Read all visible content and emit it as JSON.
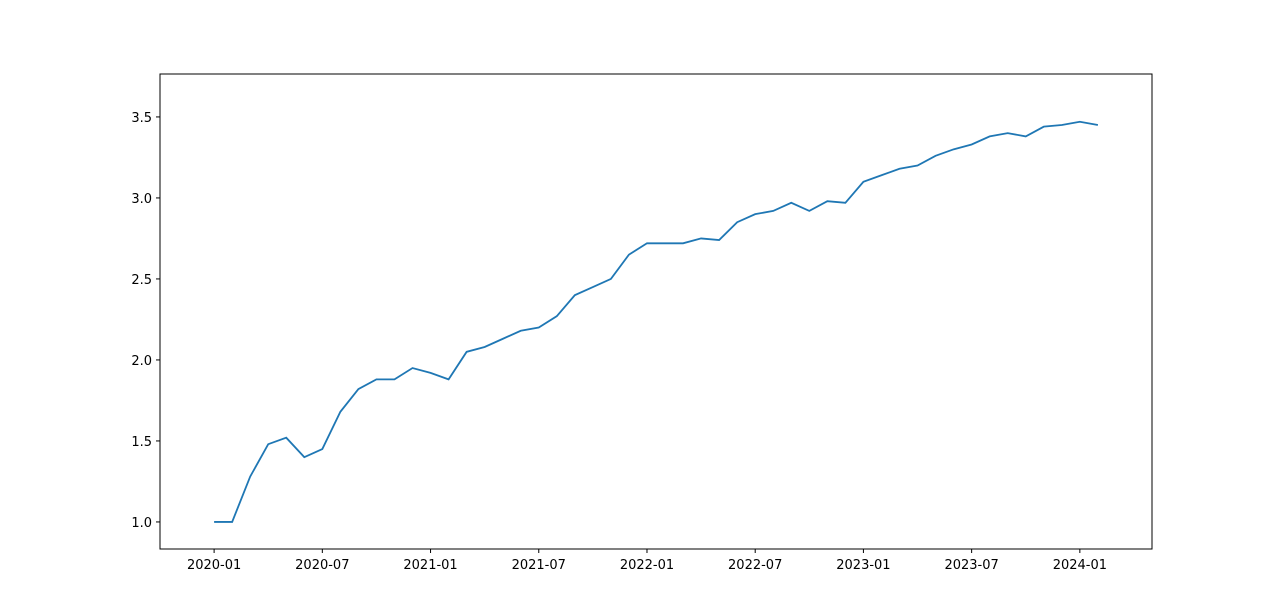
{
  "chart_data": {
    "type": "line",
    "x": [
      "2020-01",
      "2020-02",
      "2020-03",
      "2020-04",
      "2020-05",
      "2020-06",
      "2020-07",
      "2020-08",
      "2020-09",
      "2020-10",
      "2020-11",
      "2020-12",
      "2021-01",
      "2021-02",
      "2021-03",
      "2021-04",
      "2021-05",
      "2021-06",
      "2021-07",
      "2021-08",
      "2021-09",
      "2021-10",
      "2021-11",
      "2021-12",
      "2022-01",
      "2022-02",
      "2022-03",
      "2022-04",
      "2022-05",
      "2022-06",
      "2022-07",
      "2022-08",
      "2022-09",
      "2022-10",
      "2022-11",
      "2022-12",
      "2023-01",
      "2023-02",
      "2023-03",
      "2023-04",
      "2023-05",
      "2023-06",
      "2023-07",
      "2023-08",
      "2023-09",
      "2023-10",
      "2023-11",
      "2023-12",
      "2024-01",
      "2024-02"
    ],
    "series": [
      {
        "color": "#1f77b4",
        "values": [
          1.0,
          1.0,
          1.28,
          1.48,
          1.52,
          1.4,
          1.45,
          1.68,
          1.82,
          1.88,
          1.88,
          1.95,
          1.92,
          1.88,
          2.05,
          2.08,
          2.13,
          2.18,
          2.2,
          2.27,
          2.4,
          2.45,
          2.5,
          2.65,
          2.72,
          2.72,
          2.72,
          2.75,
          2.74,
          2.85,
          2.9,
          2.92,
          2.97,
          2.92,
          2.98,
          2.97,
          3.1,
          3.14,
          3.18,
          3.2,
          3.26,
          3.3,
          3.33,
          3.38,
          3.4,
          3.38,
          3.44,
          3.45,
          3.47,
          3.45
        ]
      }
    ],
    "xlim": [
      "2019-10",
      "2024-05"
    ],
    "xticks": [
      "2020-01",
      "2020-07",
      "2021-01",
      "2021-07",
      "2022-01",
      "2022-07",
      "2023-01",
      "2023-07",
      "2024-01"
    ],
    "ylim": [
      0.833,
      3.765
    ],
    "yticks": [
      {
        "value": 1,
        "label": "1.0"
      },
      {
        "value": 1.5,
        "label": "1.5"
      },
      {
        "value": 2,
        "label": "2.0"
      },
      {
        "value": 2.5,
        "label": "2.5"
      },
      {
        "value": 3,
        "label": "3.0"
      },
      {
        "value": 3.5,
        "label": "3.5"
      }
    ],
    "grid": false
  }
}
